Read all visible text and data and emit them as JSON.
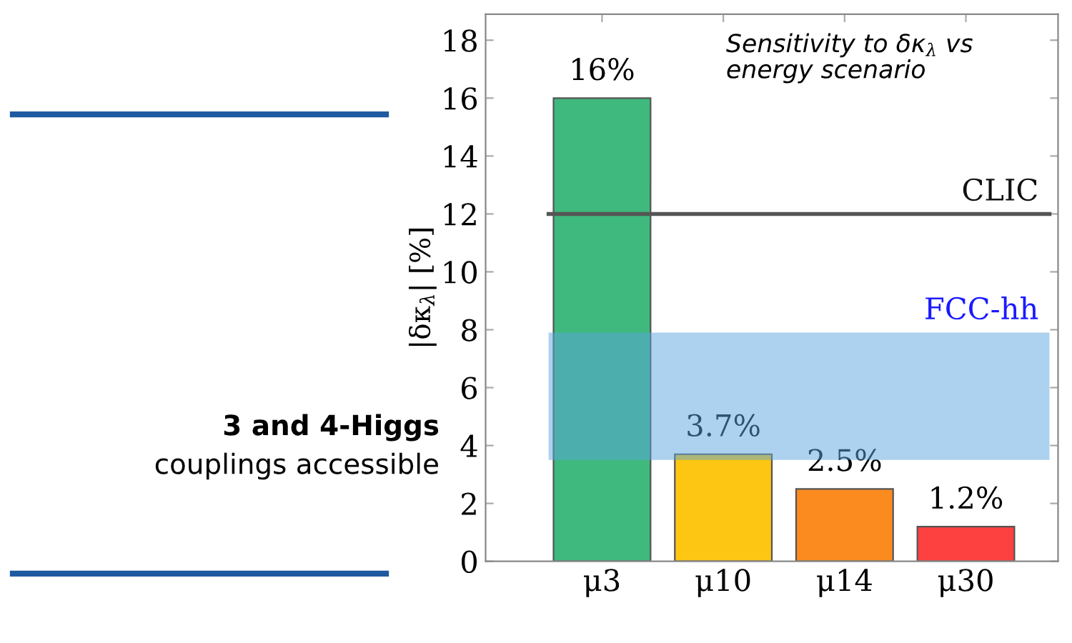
{
  "chart_data": {
    "type": "bar",
    "title": "Sensitivity to δκ$_{λ}$ vs\nenergy scenario",
    "ylabel": "|δκ$_{λ}$| [%]",
    "categories": [
      "μ3",
      "μ10",
      "μ14",
      "μ30"
    ],
    "values": [
      16,
      3.7,
      2.5,
      1.2
    ],
    "colors": [
      "#3fb97d",
      "#fdc613",
      "#fb8a1f",
      "#fd4040"
    ],
    "value_labels": [
      "16%",
      "3.7%",
      "2.5%",
      "1.2%"
    ],
    "ylim": [
      0,
      18.9
    ],
    "yticks": [
      0,
      2,
      4,
      6,
      8,
      10,
      12,
      14,
      16,
      18
    ],
    "ref_lines": [
      {
        "axis": "y",
        "value": 12,
        "label": "CLIC",
        "color": "#555555",
        "line_style": "solid"
      }
    ],
    "bands": [
      {
        "axis": "y",
        "from": 3.5,
        "to": 7.9,
        "label": "FCC-hh",
        "color": "#5aa5e0"
      }
    ],
    "annotations": [
      "3 and 4-Higgs",
      "couplings accessible"
    ],
    "grid": false,
    "legend": false
  }
}
